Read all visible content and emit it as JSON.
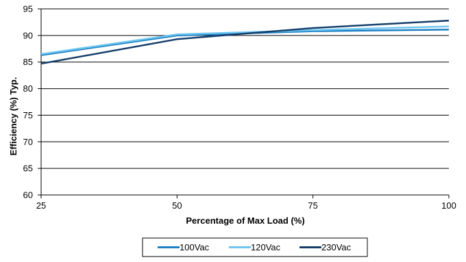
{
  "chart_data": {
    "type": "line",
    "title": "",
    "xlabel": "Percentage of Max Load (%)",
    "ylabel": "Efficiency (%) Typ.",
    "x": [
      25,
      50,
      75,
      100
    ],
    "xlim": [
      25,
      100
    ],
    "ylim": [
      60,
      95
    ],
    "x_ticks": [
      "25",
      "50",
      "75",
      "100"
    ],
    "y_ticks": [
      "60",
      "65",
      "70",
      "75",
      "80",
      "85",
      "90",
      "95"
    ],
    "grid": "horizontal",
    "legend_position": "bottom",
    "series": [
      {
        "name": "100Vac",
        "color": "#1b7fc4",
        "values": [
          86.3,
          90.0,
          90.8,
          91.1
        ]
      },
      {
        "name": "120Vac",
        "color": "#6fc6ef",
        "values": [
          86.5,
          90.2,
          91.0,
          91.7
        ]
      },
      {
        "name": "230Vac",
        "color": "#153e6b",
        "values": [
          84.7,
          89.3,
          91.4,
          92.8
        ]
      }
    ]
  }
}
